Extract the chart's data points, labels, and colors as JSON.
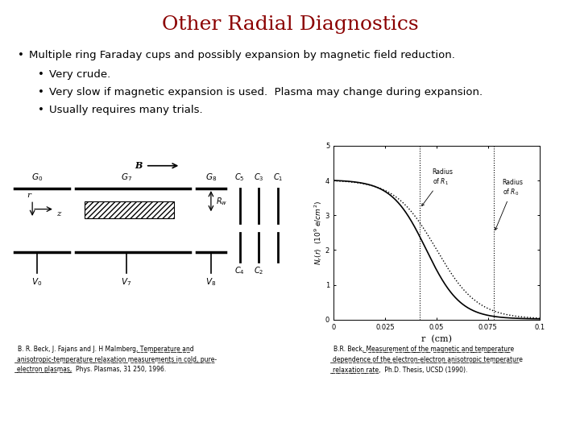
{
  "title": "Other Radial Diagnostics",
  "title_color": "#8B0000",
  "title_fontsize": 18,
  "background_color": "#ffffff",
  "bullet1": "Multiple ring Faraday cups and possibly expansion by magnetic field reduction.",
  "sub_bullet1": "Very crude.",
  "sub_bullet2": "Very slow if magnetic expansion is used.  Plasma may change during expansion.",
  "sub_bullet3": "Usually requires many trials.",
  "text_fontsize": 9.5,
  "ref_fontsize": 5.5
}
